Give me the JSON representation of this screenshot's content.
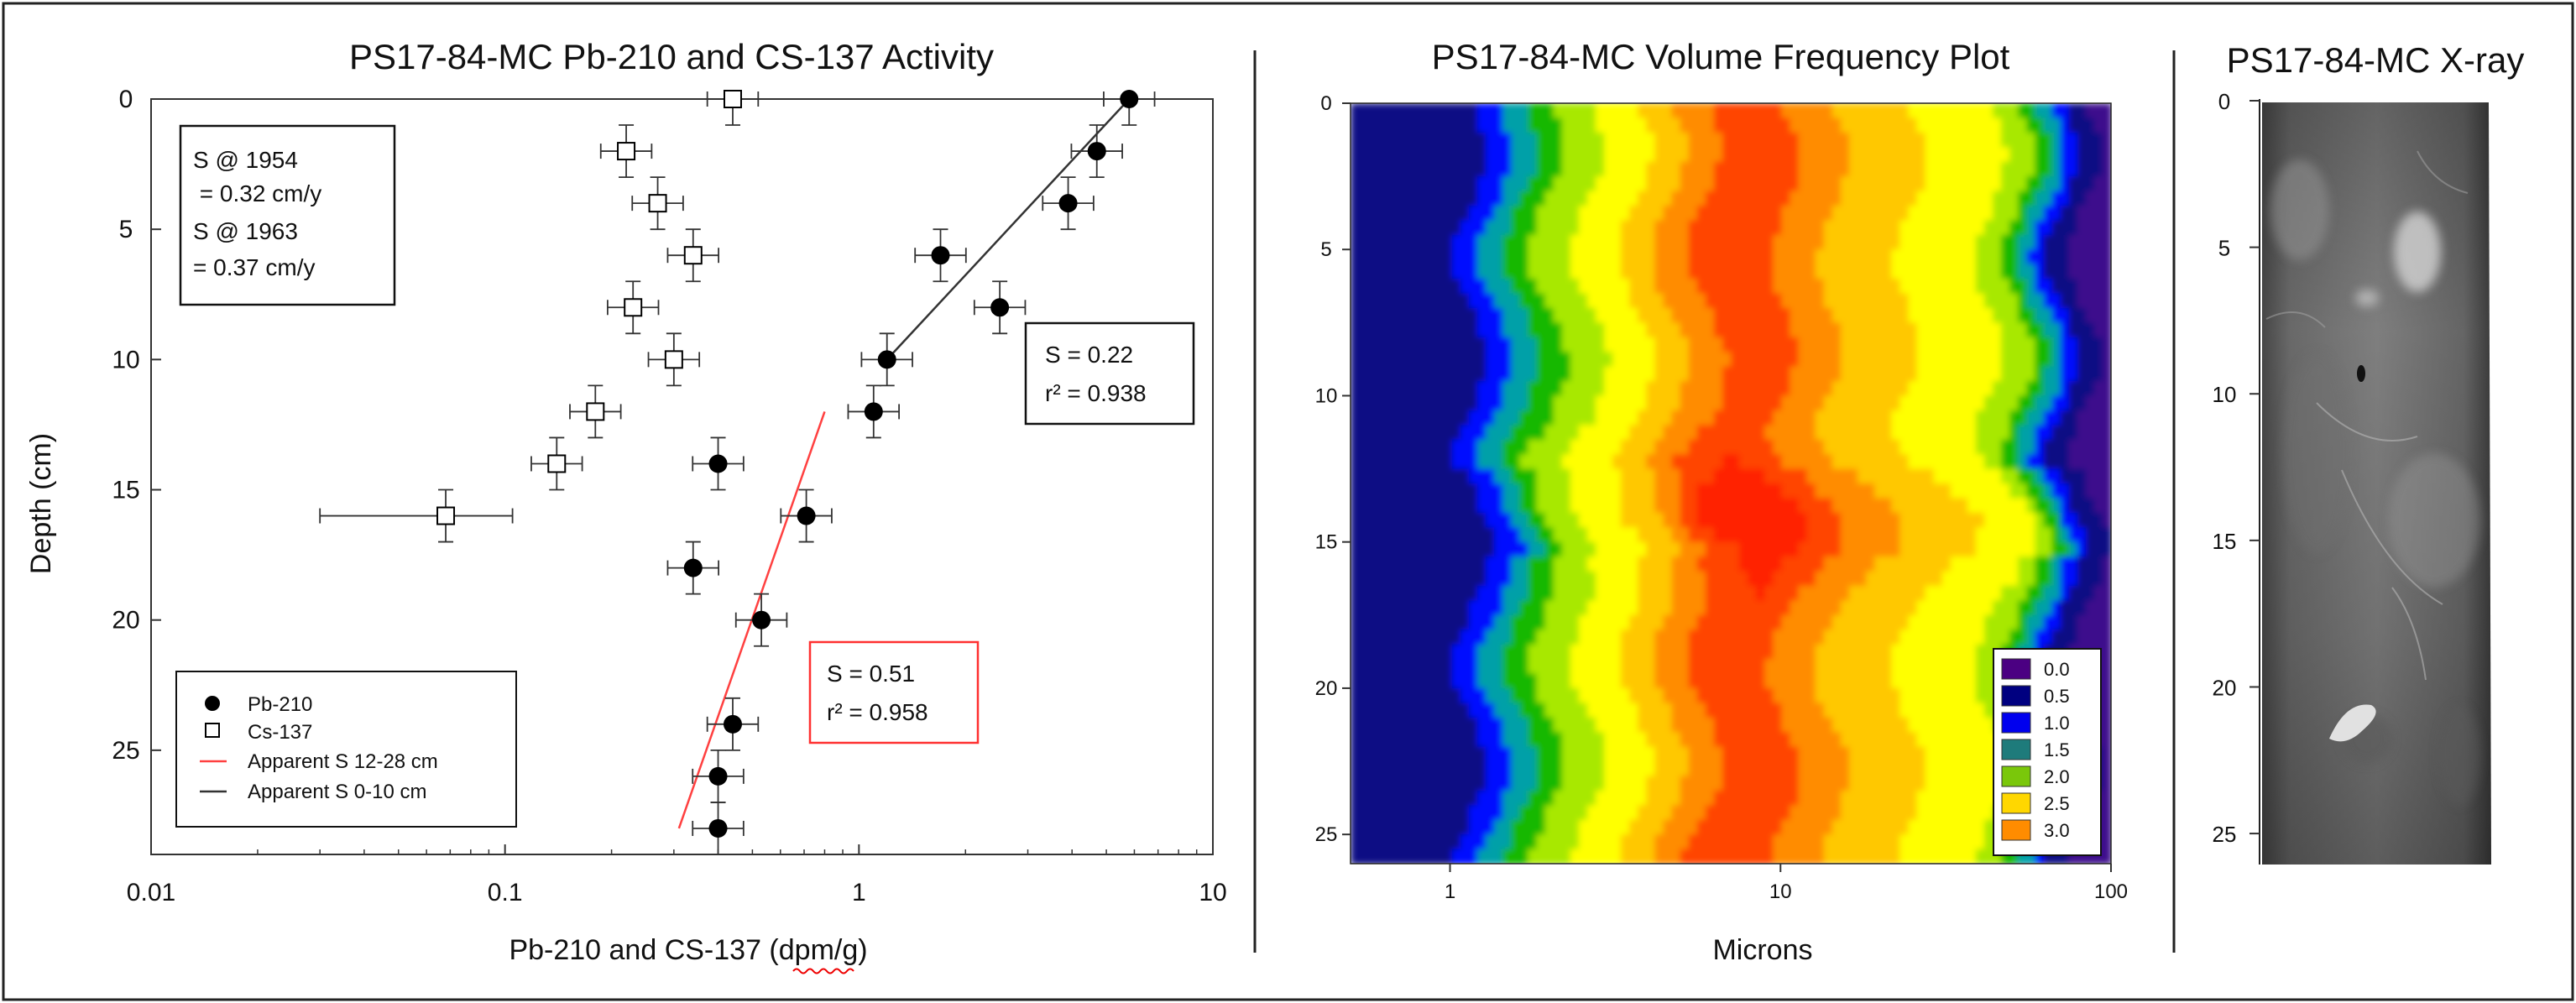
{
  "chart_data": [
    {
      "type": "scatter",
      "title": "PS17-84-MC Pb-210 and CS-137 Activity",
      "xlabel": "Pb-210 and CS-137 (dpm/g)",
      "ylabel": "Depth (cm)",
      "xscale": "log",
      "xlim": [
        0.01,
        10
      ],
      "ylim": [
        0,
        29
      ],
      "y_inverted": true,
      "xticks": [
        "0.01",
        "0.1",
        "1",
        "10"
      ],
      "yticks": [
        "0",
        "5",
        "10",
        "15",
        "20",
        "25"
      ],
      "series": [
        {
          "name": "Pb-210",
          "marker": "filled-circle",
          "color": "#000000",
          "points": [
            {
              "x": 5.8,
              "y": 0
            },
            {
              "x": 4.7,
              "y": 2
            },
            {
              "x": 3.9,
              "y": 4
            },
            {
              "x": 1.7,
              "y": 6
            },
            {
              "x": 2.5,
              "y": 8
            },
            {
              "x": 1.2,
              "y": 10
            },
            {
              "x": 1.1,
              "y": 12
            },
            {
              "x": 0.4,
              "y": 14
            },
            {
              "x": 0.71,
              "y": 16
            },
            {
              "x": 0.34,
              "y": 18
            },
            {
              "x": 0.53,
              "y": 20
            },
            {
              "x": 0.44,
              "y": 24
            },
            {
              "x": 0.4,
              "y": 26
            },
            {
              "x": 0.4,
              "y": 28
            }
          ]
        },
        {
          "name": "Cs-137",
          "marker": "open-square",
          "color": "#000000",
          "points": [
            {
              "x": 0.44,
              "y": 0
            },
            {
              "x": 0.22,
              "y": 2
            },
            {
              "x": 0.27,
              "y": 4
            },
            {
              "x": 0.34,
              "y": 6
            },
            {
              "x": 0.23,
              "y": 8
            },
            {
              "x": 0.3,
              "y": 10
            },
            {
              "x": 0.18,
              "y": 12
            },
            {
              "x": 0.14,
              "y": 14
            },
            {
              "x": 0.068,
              "y": 16
            }
          ]
        }
      ],
      "fit_lines": [
        {
          "name": "Apparent S 12-28 cm",
          "color": "#ff4040",
          "from": {
            "x": 0.31,
            "y": 28
          },
          "to": {
            "x": 0.8,
            "y": 12
          }
        },
        {
          "name": "Apparent S 0-10 cm",
          "color": "#333333",
          "from": {
            "x": 1.2,
            "y": 10
          },
          "to": {
            "x": 5.8,
            "y": 0
          }
        }
      ],
      "annotations": {
        "box1_lines": [
          "S @ 1954",
          " = 0.32 cm/y",
          "S @ 1963",
          "= 0.37 cm/y"
        ],
        "box2_lines": [
          "S = 0.22",
          "r² = 0.938"
        ],
        "box3_lines": [
          "S = 0.51",
          "r² = 0.958"
        ],
        "box3_border_color": "#ff3030"
      },
      "legend_position": "bottom-left"
    },
    {
      "type": "heatmap",
      "title": "PS17-84-MC Volume Frequency Plot",
      "xlabel": "Microns",
      "xscale": "log",
      "xlim": [
        0.5,
        100
      ],
      "ylim": [
        0,
        26
      ],
      "y_inverted": true,
      "xticks": [
        "1",
        "10",
        "100"
      ],
      "yticks": [
        "0",
        "5",
        "10",
        "15",
        "20",
        "25"
      ],
      "legend": {
        "levels": [
          "0.0",
          "0.5",
          "1.0",
          "1.5",
          "2.0",
          "2.5",
          "3.0"
        ],
        "colors": [
          "#4b0082",
          "#000080",
          "#0000ee",
          "#1e7b7b",
          "#7ac70a",
          "#ffd700",
          "#ff8c00"
        ],
        "position": "bottom-right"
      },
      "color_scale": [
        {
          "value": 0.0,
          "color": "#3c0a8c"
        },
        {
          "value": 0.4,
          "color": "#0d0a84"
        },
        {
          "value": 0.9,
          "color": "#0010ff"
        },
        {
          "value": 1.4,
          "color": "#00a0a8"
        },
        {
          "value": 1.8,
          "color": "#12b800"
        },
        {
          "value": 2.1,
          "color": "#a8e800"
        },
        {
          "value": 2.35,
          "color": "#ffff00"
        },
        {
          "value": 2.65,
          "color": "#ffc800"
        },
        {
          "value": 2.95,
          "color": "#ff8c00"
        },
        {
          "value": 3.2,
          "color": "#ff4500"
        },
        {
          "value": 3.45,
          "color": "#ff2000"
        }
      ],
      "profile_log10_microns": [
        -0.3,
        0.0,
        0.12,
        0.25,
        0.4,
        0.55,
        0.72,
        0.9,
        1.1,
        1.3,
        1.45,
        1.6,
        1.7,
        1.78,
        1.85,
        1.92,
        2.0
      ],
      "profile_values": [
        0.4,
        0.5,
        1.3,
        2.0,
        2.3,
        2.6,
        3.1,
        3.4,
        3.0,
        2.75,
        2.55,
        2.4,
        2.2,
        1.7,
        0.9,
        0.4,
        0.3
      ],
      "depth_modifiers": [
        {
          "depth": 0,
          "value": 0
        },
        {
          "depth": 4,
          "value": 0.05
        },
        {
          "depth": 8,
          "value": 0
        },
        {
          "depth": 11,
          "value": -0.05
        },
        {
          "depth": 14,
          "value": 0.3
        },
        {
          "depth": 17,
          "value": 0.05
        },
        {
          "depth": 21,
          "value": 0
        },
        {
          "depth": 26,
          "value": 0.05
        }
      ],
      "red_core_depth": 14,
      "red_core_log10_microns": 0.85
    },
    {
      "type": "image",
      "title": "PS17-84-MC X-ray",
      "ylim": [
        0,
        26
      ],
      "yticks": [
        "0",
        "5",
        "10",
        "15",
        "20",
        "25"
      ]
    }
  ]
}
